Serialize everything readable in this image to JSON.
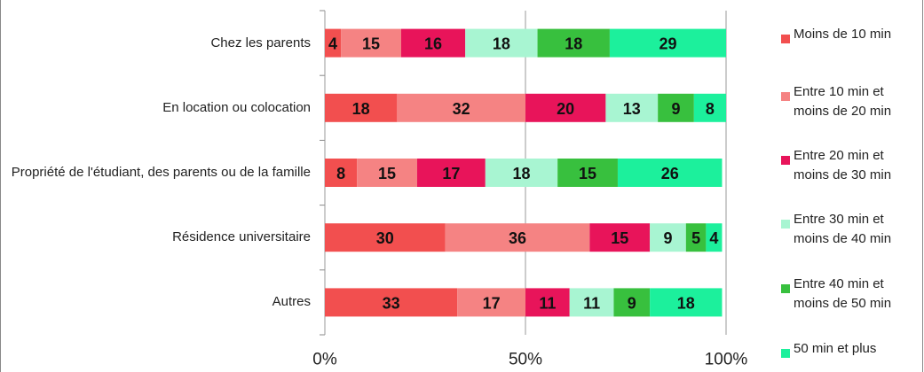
{
  "chart_data": {
    "type": "stacked_barh",
    "categories": [
      "Chez les parents",
      "En location ou colocation",
      "Propriété de l'étudiant, des parents ou de la famille",
      "Résidence universitaire",
      "Autres"
    ],
    "series": [
      {
        "name": "Moins de 10 min",
        "color": "#f24f4f",
        "values": [
          4,
          18,
          8,
          30,
          33
        ]
      },
      {
        "name": "Entre 10 min et moins de 20 min",
        "color": "#f58383",
        "values": [
          15,
          32,
          15,
          36,
          17
        ]
      },
      {
        "name": "Entre 20 min et moins de 30 min",
        "color": "#e8145a",
        "values": [
          16,
          20,
          17,
          15,
          11
        ]
      },
      {
        "name": "Entre 30 min et moins de 40 min",
        "color": "#a8f5d2",
        "values": [
          18,
          13,
          18,
          9,
          11
        ]
      },
      {
        "name": "Entre 40 min et moins de 50 min",
        "color": "#38c03e",
        "values": [
          18,
          9,
          15,
          5,
          9
        ]
      },
      {
        "name": "50 min et plus",
        "color": "#1cf09c",
        "values": [
          29,
          8,
          26,
          4,
          18
        ]
      }
    ],
    "xlim": [
      0,
      100
    ],
    "xticks": [
      {
        "value": 0,
        "label": "0%"
      },
      {
        "value": 50,
        "label": "50%"
      },
      {
        "value": 100,
        "label": "100%"
      }
    ],
    "grid": true,
    "legend": "right"
  }
}
